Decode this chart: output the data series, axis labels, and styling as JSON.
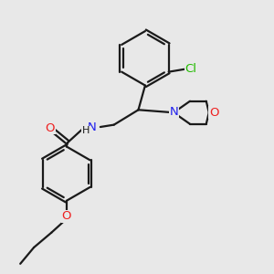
{
  "bg_color": "#e8e8e8",
  "bond_color": "#1a1a1a",
  "N_color": "#2020ee",
  "O_color": "#ee2020",
  "Cl_color": "#22bb00",
  "line_width": 1.6,
  "font_size": 9.5,
  "figsize": [
    3.0,
    3.0
  ],
  "dpi": 100,
  "xlim": [
    0,
    10
  ],
  "ylim": [
    0,
    10
  ]
}
